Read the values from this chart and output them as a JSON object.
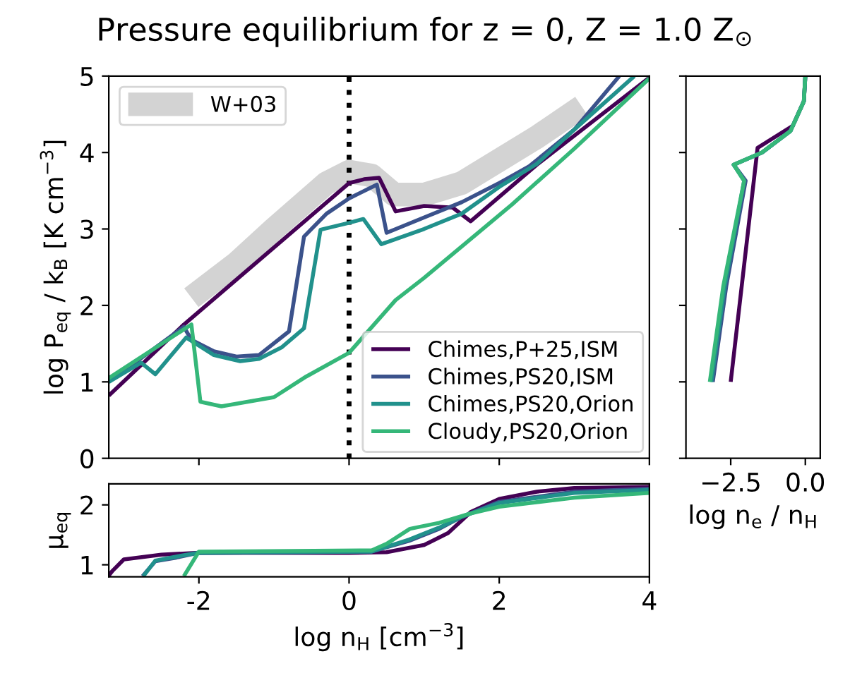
{
  "chart_data": [
    {
      "type": "line",
      "title": "Pressure equilibrium for z = 0, Z = 1.0 Z$_{⊙}$",
      "ylabel": "log P$_{eq}$ / k$_{B}$ [K cm$^{−3}$]",
      "xlim": [
        -3.2,
        4
      ],
      "xticks": [
        {
          "value": -2,
          "label": null
        },
        {
          "value": 0,
          "label": null
        },
        {
          "value": 2,
          "label": null
        },
        {
          "value": 4,
          "label": null
        }
      ],
      "ylim": [
        0,
        5
      ],
      "yticks": [
        0,
        1,
        2,
        3,
        4,
        5
      ],
      "tick_labels": "y",
      "legend": "lower right",
      "ref_lines": [
        {
          "axis": "x",
          "value": 0,
          "color": "#000000",
          "line_style": "dotted"
        }
      ],
      "series": [
        {
          "name": "W+03",
          "color": "#d3d3d3",
          "x": [
            -2.1,
            -1.5,
            -1.0,
            -0.3,
            0.0,
            0.3,
            0.6,
            1.0,
            1.5,
            2.0,
            2.5,
            3.1
          ],
          "values": [
            2.1,
            2.55,
            3.0,
            3.6,
            3.75,
            3.7,
            3.45,
            3.45,
            3.6,
            3.9,
            4.2,
            4.6
          ]
        },
        {
          "name": "Chimes,P+25,ISM",
          "color": "#440154",
          "x": [
            -3.2,
            -2.2,
            0.0,
            0.2,
            0.4,
            0.62,
            1.0,
            1.38,
            1.62,
            2.5,
            4.0
          ],
          "values": [
            0.82,
            1.75,
            3.6,
            3.65,
            3.67,
            3.23,
            3.3,
            3.28,
            3.1,
            3.84,
            4.98
          ]
        },
        {
          "name": "Chimes,PS20,ISM",
          "color": "#3b528b",
          "x": [
            -3.2,
            -2.2,
            -2.1,
            -1.8,
            -1.5,
            -1.2,
            -0.8,
            -0.6,
            -0.3,
            0.0,
            0.37,
            0.5,
            1.0,
            1.5,
            2.0,
            2.4,
            3.0,
            3.6
          ],
          "values": [
            1.0,
            1.72,
            1.55,
            1.4,
            1.33,
            1.35,
            1.66,
            2.9,
            3.2,
            3.4,
            3.58,
            2.95,
            3.15,
            3.35,
            3.6,
            3.82,
            4.3,
            5.0
          ]
        },
        {
          "name": "Chimes,PS20,Orion",
          "color": "#21918c",
          "x": [
            -3.2,
            -2.77,
            -2.58,
            -2.17,
            -1.8,
            -1.45,
            -1.2,
            -0.9,
            -0.6,
            -0.38,
            0.0,
            0.19,
            0.43,
            1.0,
            1.5,
            2.0,
            2.5,
            3.0,
            3.8
          ],
          "values": [
            1.0,
            1.25,
            1.1,
            1.58,
            1.35,
            1.27,
            1.3,
            1.45,
            1.7,
            2.99,
            3.08,
            3.13,
            2.8,
            3.0,
            3.2,
            3.55,
            3.85,
            4.3,
            5.0
          ]
        },
        {
          "name": "Cloudy,PS20,Orion",
          "color": "#35b779",
          "x": [
            -3.2,
            -2.1,
            -1.98,
            -1.7,
            -1.0,
            -0.57,
            0.0,
            0.62,
            1.0,
            2.17,
            3.0,
            4.0
          ],
          "values": [
            1.05,
            1.75,
            0.74,
            0.68,
            0.8,
            1.07,
            1.38,
            2.07,
            2.36,
            3.32,
            4.05,
            4.97
          ]
        }
      ]
    },
    {
      "type": "line",
      "xlabel": "log n$_{e}$ / n$_{H}$",
      "xlim": [
        -4.0,
        0.5
      ],
      "xticks": [
        {
          "value": -2.5,
          "label": "−2.5"
        },
        {
          "value": 0.0,
          "label": "0.0"
        }
      ],
      "ylim": [
        0,
        5
      ],
      "yticks": [
        {
          "value": 0,
          "label": null
        },
        {
          "value": 1,
          "label": null
        },
        {
          "value": 2,
          "label": null
        },
        {
          "value": 3,
          "label": null
        },
        {
          "value": 4,
          "label": null
        },
        {
          "value": 5,
          "label": null
        }
      ],
      "tick_labels": "x",
      "orientation": "horizontal",
      "series": [
        {
          "color": "#440154",
          "x": [
            1.0,
            4.06,
            4.35,
            4.67,
            5.0
          ],
          "values": [
            -2.5,
            -1.6,
            -0.42,
            -0.05,
            0.0
          ]
        },
        {
          "color": "#3b528b",
          "x": [
            1.0,
            2.25,
            3.63,
            3.84,
            4.0,
            4.28,
            4.67,
            5.0
          ],
          "values": [
            -3.1,
            -2.65,
            -2.0,
            -2.4,
            -1.45,
            -0.5,
            -0.05,
            0.0
          ]
        },
        {
          "color": "#21918c",
          "x": [
            1.0,
            2.25,
            3.63,
            3.84,
            4.0,
            4.28,
            4.67,
            5.0
          ],
          "values": [
            -3.15,
            -2.7,
            -2.05,
            -2.4,
            -1.45,
            -0.5,
            -0.05,
            0.0
          ]
        },
        {
          "color": "#35b779",
          "x": [
            1.0,
            2.25,
            3.63,
            3.84,
            4.0,
            4.28,
            4.67,
            5.0
          ],
          "values": [
            -3.2,
            -2.75,
            -2.05,
            -2.4,
            -1.46,
            -0.5,
            -0.05,
            0.0
          ]
        }
      ]
    },
    {
      "type": "line",
      "xlabel": "log n$_{H}$ [cm$^{−3}$]",
      "ylabel": "μ$_{eq}$",
      "xlim": [
        -3.2,
        4
      ],
      "xticks": [
        -2,
        0,
        2,
        4
      ],
      "ylim": [
        0.8,
        2.35
      ],
      "yticks": [
        1,
        2
      ],
      "series": [
        {
          "color": "#440154",
          "x": [
            -3.2,
            -3.15,
            -3.0,
            -2.5,
            -2.0,
            0.0,
            0.5,
            1.0,
            1.32,
            1.62,
            2.0,
            2.5,
            3.0,
            4.0
          ],
          "values": [
            0.82,
            0.9,
            1.09,
            1.17,
            1.2,
            1.2,
            1.21,
            1.33,
            1.53,
            1.88,
            2.1,
            2.22,
            2.28,
            2.3
          ]
        },
        {
          "color": "#3b528b",
          "x": [
            -2.75,
            -2.58,
            -2.3,
            -2.0,
            0.3,
            0.8,
            1.2,
            1.5,
            2.0,
            3.0,
            4.0
          ],
          "values": [
            0.81,
            1.06,
            1.12,
            1.2,
            1.22,
            1.4,
            1.6,
            1.8,
            2.05,
            2.22,
            2.27
          ]
        },
        {
          "color": "#21918c",
          "x": [
            -2.74,
            -2.58,
            -2.24,
            -2.0,
            0.3,
            0.8,
            1.2,
            1.5,
            2.0,
            3.0,
            4.0
          ],
          "values": [
            0.81,
            1.07,
            1.15,
            1.2,
            1.22,
            1.42,
            1.62,
            1.8,
            2.03,
            2.2,
            2.25
          ]
        },
        {
          "color": "#35b779",
          "x": [
            -2.2,
            -2.0,
            0.3,
            0.5,
            0.81,
            1.2,
            1.6,
            2.0,
            3.0,
            4.0
          ],
          "values": [
            0.81,
            1.22,
            1.24,
            1.35,
            1.6,
            1.7,
            1.85,
            1.97,
            2.12,
            2.2
          ]
        }
      ]
    }
  ]
}
